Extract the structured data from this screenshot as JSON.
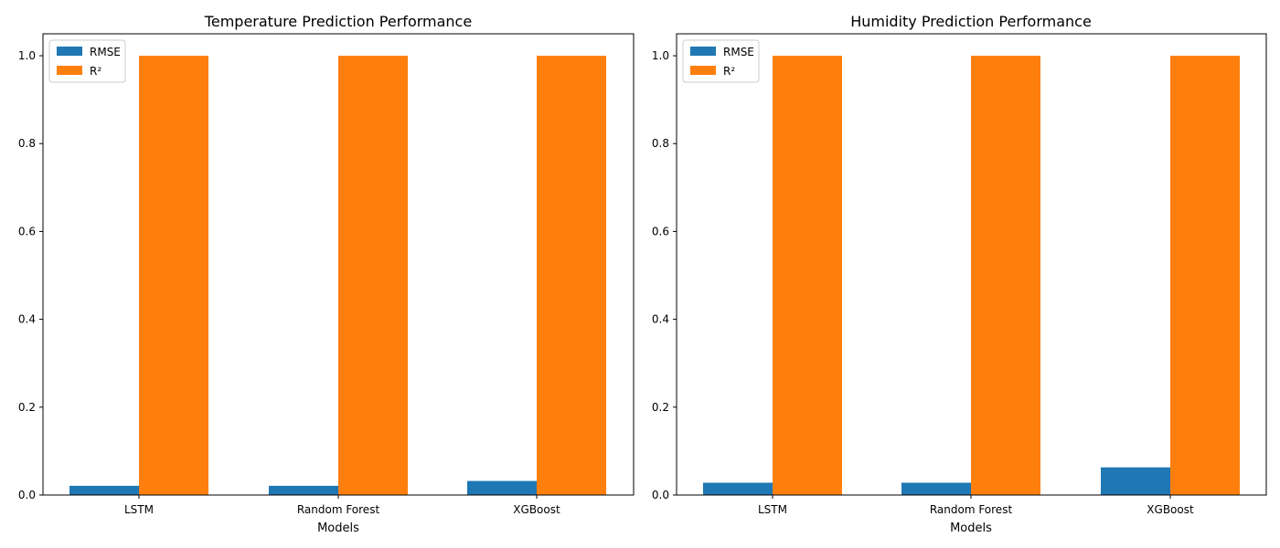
{
  "colors": {
    "rmse": "#1f77b4",
    "r2": "#ff7f0e"
  },
  "chart_data": [
    {
      "type": "bar",
      "title": "Temperature Prediction Performance",
      "xlabel": "Models",
      "ylabel": "",
      "categories": [
        "LSTM",
        "Random Forest",
        "XGBoost"
      ],
      "series": [
        {
          "name": "RMSE",
          "values": [
            0.021,
            0.021,
            0.032
          ]
        },
        {
          "name": "R²",
          "values": [
            1.0,
            1.0,
            1.0
          ]
        }
      ],
      "ylim": [
        0,
        1.05
      ],
      "yticks": [
        "0.0",
        "0.2",
        "0.4",
        "0.6",
        "0.8",
        "1.0"
      ],
      "legend": "upper-left",
      "grid": false
    },
    {
      "type": "bar",
      "title": "Humidity Prediction Performance",
      "xlabel": "Models",
      "ylabel": "",
      "categories": [
        "LSTM",
        "Random Forest",
        "XGBoost"
      ],
      "series": [
        {
          "name": "RMSE",
          "values": [
            0.028,
            0.028,
            0.063
          ]
        },
        {
          "name": "R²",
          "values": [
            1.0,
            1.0,
            1.0
          ]
        }
      ],
      "ylim": [
        0,
        1.05
      ],
      "yticks": [
        "0.0",
        "0.2",
        "0.4",
        "0.6",
        "0.8",
        "1.0"
      ],
      "legend": "upper-left",
      "grid": false
    }
  ]
}
